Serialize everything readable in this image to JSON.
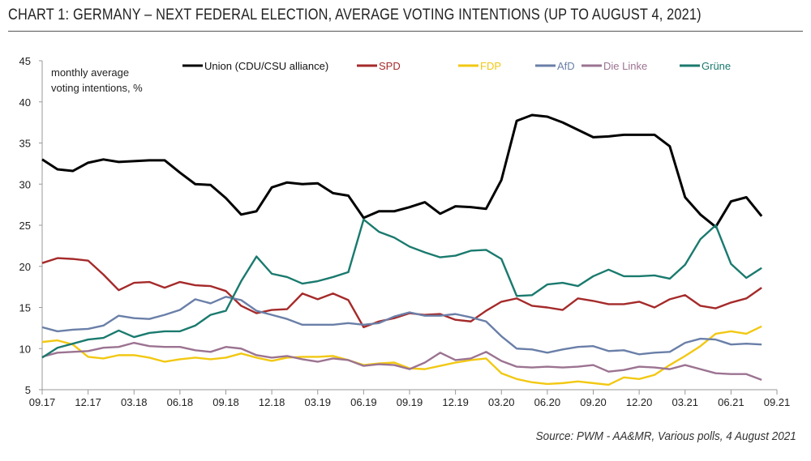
{
  "chart_data": {
    "type": "line",
    "title": "CHART 1: GERMANY – NEXT FEDERAL ELECTION, AVERAGE VOTING INTENTIONS (UP TO AUGUST 4, 2021)",
    "ylabel_lines": [
      "monthly average",
      "voting intentions, %"
    ],
    "ylim": [
      5,
      45
    ],
    "yticks": [
      5,
      10,
      15,
      20,
      25,
      30,
      35,
      40,
      45
    ],
    "x_start": "09.17",
    "x_end": "09.21",
    "xtick_labels": [
      "09.17",
      "12.17",
      "03.18",
      "06.18",
      "09.18",
      "12.18",
      "03.19",
      "06.19",
      "09.19",
      "12.19",
      "03.20",
      "06.20",
      "09.20",
      "12.20",
      "03.21",
      "06.21",
      "09.21"
    ],
    "x_frequency": "monthly",
    "first_point": "09.17",
    "last_point": "08.21",
    "grid": false,
    "legend_placement": "top",
    "series": [
      {
        "name": "Union (CDU/CSU alliance)",
        "color": "#000000",
        "values": [
          33,
          31.8,
          31.6,
          32.6,
          33,
          32.7,
          32.8,
          32.9,
          32.9,
          31.4,
          30,
          29.9,
          28.3,
          26.3,
          26.7,
          29.6,
          30.2,
          30,
          30.1,
          28.9,
          28.6,
          25.9,
          26.7,
          26.7,
          27.2,
          27.8,
          26.4,
          27.3,
          27.2,
          27,
          30.5,
          37.7,
          38.4,
          38.2,
          37.5,
          36.6,
          35.7,
          35.8,
          36,
          36,
          36,
          34.6,
          28.4,
          26.3,
          24.8,
          27.9,
          28.4,
          26.1
        ]
      },
      {
        "name": "SPD",
        "color": "#a52a2a",
        "values": [
          20.4,
          21,
          20.9,
          20.7,
          19,
          17.1,
          18,
          18.1,
          17.4,
          18.1,
          17.7,
          17.6,
          17,
          15.2,
          14.3,
          14.7,
          14.8,
          16.7,
          16,
          16.7,
          15.9,
          12.6,
          13.3,
          13.7,
          14.3,
          14.1,
          14.2,
          13.5,
          13.3,
          14.6,
          15.7,
          16.1,
          15.2,
          15,
          14.7,
          16.1,
          15.8,
          15.4,
          15.4,
          15.7,
          15,
          16,
          16.5,
          15.2,
          14.9,
          15.6,
          16.1,
          17.4
        ]
      },
      {
        "name": "FDP",
        "color": "#f2c812",
        "values": [
          10.8,
          11,
          10.5,
          9,
          8.8,
          9.2,
          9.2,
          8.9,
          8.4,
          8.7,
          8.9,
          8.7,
          8.9,
          9.4,
          8.9,
          8.5,
          8.9,
          9,
          9,
          9.1,
          8.6,
          8,
          8.2,
          8.3,
          7.6,
          7.5,
          7.9,
          8.3,
          8.6,
          8.8,
          7,
          6.3,
          5.9,
          5.7,
          5.8,
          6,
          5.8,
          5.6,
          6.5,
          6.3,
          6.8,
          8,
          9.1,
          10.3,
          11.8,
          12.1,
          11.8,
          12.7
        ]
      },
      {
        "name": "AfD",
        "color": "#6a7fa8",
        "values": [
          12.6,
          12.1,
          12.3,
          12.4,
          12.8,
          14,
          13.7,
          13.6,
          14.1,
          14.7,
          16,
          15.5,
          16.3,
          15.9,
          14.6,
          14.1,
          13.6,
          12.9,
          12.9,
          12.9,
          13.1,
          12.9,
          13.1,
          13.9,
          14.4,
          14,
          14,
          14.2,
          13.8,
          13.3,
          11.5,
          10,
          9.9,
          9.5,
          9.9,
          10.2,
          10.3,
          9.7,
          9.8,
          9.3,
          9.5,
          9.6,
          10.7,
          11.2,
          11.1,
          10.5,
          10.6,
          10.5
        ]
      },
      {
        "name": "Die Linke",
        "color": "#9b7391",
        "values": [
          9,
          9.5,
          9.6,
          9.7,
          10.1,
          10.2,
          10.7,
          10.3,
          10.2,
          10.2,
          9.8,
          9.6,
          10.2,
          10,
          9.2,
          8.9,
          9.1,
          8.7,
          8.4,
          8.8,
          8.6,
          7.9,
          8.1,
          8,
          7.5,
          8.3,
          9.5,
          8.6,
          8.8,
          9.6,
          8.5,
          7.8,
          7.7,
          7.8,
          7.7,
          7.8,
          8,
          7.2,
          7.4,
          7.8,
          7.7,
          7.5,
          8,
          7.5,
          7,
          6.9,
          6.9,
          6.2
        ]
      },
      {
        "name": "Grüne",
        "color": "#1a7a6e",
        "values": [
          8.9,
          10.1,
          10.6,
          11.1,
          11.3,
          12.2,
          11.4,
          11.9,
          12.1,
          12.1,
          12.8,
          14.1,
          14.6,
          18.2,
          21.2,
          19.1,
          18.7,
          17.9,
          18.2,
          18.7,
          19.3,
          25.7,
          24.2,
          23.5,
          22.4,
          21.7,
          21.1,
          21.3,
          21.9,
          22,
          20.9,
          16.4,
          16.5,
          17.8,
          18,
          17.6,
          18.8,
          19.6,
          18.8,
          18.8,
          18.9,
          18.5,
          20.2,
          23.3,
          25,
          20.3,
          18.6,
          19.8
        ]
      }
    ],
    "source": "Source: PWM - AA&MR, Various polls, 4 August 2021"
  }
}
